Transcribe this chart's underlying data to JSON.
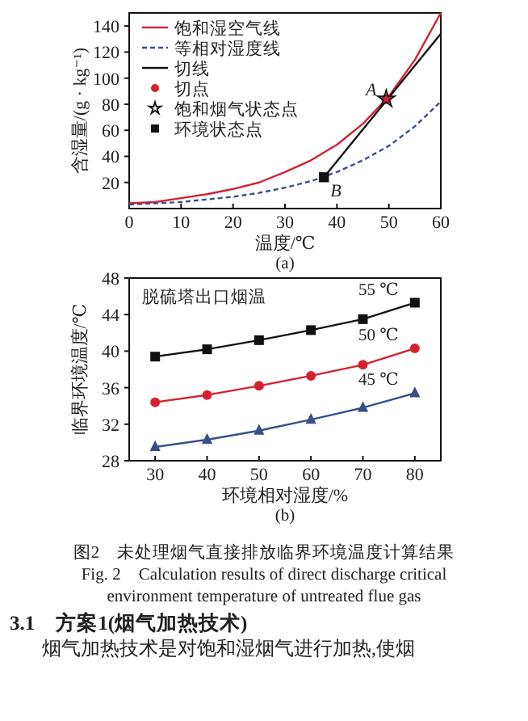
{
  "chart_data": [
    {
      "type": "line",
      "xlabel": "温度/℃",
      "ylabel": "含湿量/(g · kg⁻¹)",
      "subtitle": "(a)",
      "xlim": [
        0,
        60
      ],
      "ylim": [
        0,
        150
      ],
      "xticks": [
        0,
        10,
        20,
        30,
        40,
        50,
        60
      ],
      "yticks": [
        20,
        40,
        60,
        80,
        100,
        120,
        140
      ],
      "legend": "top left",
      "annotations": [
        {
          "text": "A",
          "x": 49.5,
          "y": 84
        },
        {
          "text": "B",
          "x": 37.5,
          "y": 24
        }
      ],
      "series": [
        {
          "name": "饱和湿空气线",
          "color": "#d62030",
          "line_style": "solid",
          "marker": "none",
          "x": [
            0,
            5,
            10,
            15,
            20,
            25,
            30,
            35,
            40,
            45,
            50,
            55,
            60
          ],
          "values": [
            4,
            5,
            8,
            11,
            15,
            20,
            28,
            37,
            49,
            65,
            86,
            114,
            150
          ]
        },
        {
          "name": "等相对湿度线",
          "color": "#3a4f8a",
          "line_style": "dashed",
          "marker": "none",
          "x": [
            0,
            5,
            10,
            15,
            20,
            25,
            30,
            35,
            40,
            45,
            50,
            55,
            60
          ],
          "values": [
            3,
            4,
            5,
            7,
            9,
            12,
            16,
            21,
            28,
            37,
            48,
            63,
            82
          ]
        },
        {
          "name": "切线",
          "color": "#111111",
          "line_style": "solid",
          "marker": "none",
          "x": [
            37.5,
            60
          ],
          "values": [
            24,
            134
          ]
        },
        {
          "name": "切点",
          "type": "scatter",
          "color": "#d62030",
          "marker": "circle",
          "x": [
            49.5
          ],
          "values": [
            84
          ]
        },
        {
          "name": "饱和烟气状态点",
          "type": "scatter",
          "color": "#111111",
          "marker": "star",
          "x": [
            49.5
          ],
          "values": [
            84
          ]
        },
        {
          "name": "环境状态点",
          "type": "scatter",
          "color": "#111111",
          "marker": "square",
          "x": [
            37.5
          ],
          "values": [
            24
          ]
        }
      ]
    },
    {
      "type": "line",
      "xlabel": "环境相对湿度/%",
      "ylabel": "临界环境温度/℃",
      "subtitle": "(b)",
      "xlim": [
        25,
        85
      ],
      "ylim": [
        28,
        48
      ],
      "xticks": [
        30,
        40,
        50,
        60,
        70,
        80
      ],
      "yticks": [
        28,
        32,
        36,
        40,
        44,
        48
      ],
      "annotations": [
        "脱硫塔出口烟温",
        "图2　未处理烟气直接排放临界环境温度计算结果",
        "Fig. 2　Calculation results of direct discharge critical",
        "environment temperature of untreated flue gas",
        "3.1　方案1(烟气加热技术)",
        "烟气加热技术是对饱和湿烟气进行加热,使烟"
      ],
      "series": [
        {
          "name": "55 ℃",
          "color": "#111111",
          "line_style": "solid",
          "marker": "square",
          "x": [
            30,
            40,
            50,
            60,
            70,
            80
          ],
          "values": [
            39.4,
            40.2,
            41.2,
            42.3,
            43.5,
            45.3
          ]
        },
        {
          "name": "50 ℃",
          "color": "#d62030",
          "line_style": "solid",
          "marker": "circle",
          "x": [
            30,
            40,
            50,
            60,
            70,
            80
          ],
          "values": [
            34.4,
            35.2,
            36.2,
            37.3,
            38.5,
            40.3
          ]
        },
        {
          "name": "45 ℃",
          "color": "#3a4f8a",
          "line_style": "solid",
          "marker": "triangle",
          "x": [
            30,
            40,
            50,
            60,
            70,
            80
          ],
          "values": [
            29.5,
            30.3,
            31.3,
            32.5,
            33.8,
            35.4
          ]
        }
      ]
    }
  ]
}
